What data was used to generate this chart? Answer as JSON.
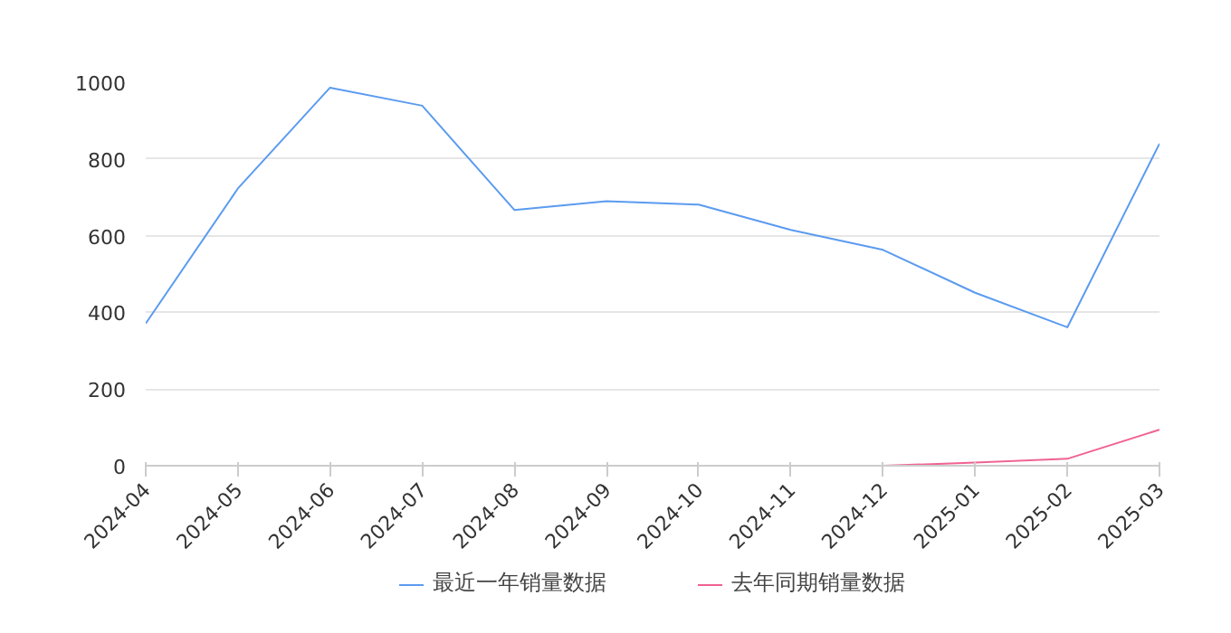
{
  "chart_data": {
    "type": "line",
    "categories": [
      "2024-04",
      "2024-05",
      "2024-06",
      "2024-07",
      "2024-08",
      "2024-09",
      "2024-10",
      "2024-11",
      "2024-12",
      "2025-01",
      "2025-02",
      "2025-03"
    ],
    "series": [
      {
        "name": "最近一年销量数据",
        "color": "#5b9bf0",
        "values": [
          371,
          723,
          986,
          939,
          667,
          690,
          681,
          615,
          563,
          451,
          361,
          840
        ]
      },
      {
        "name": "去年同期销量数据",
        "color": "#f06292",
        "values": [
          null,
          null,
          null,
          null,
          null,
          null,
          null,
          null,
          0,
          8,
          18,
          94
        ]
      }
    ],
    "ylim": [
      0,
      1000
    ],
    "yticks": [
      0,
      200,
      400,
      600,
      800,
      1000
    ],
    "grid": "y",
    "legend": "bottom",
    "marker": "none",
    "line_style": "solid"
  }
}
